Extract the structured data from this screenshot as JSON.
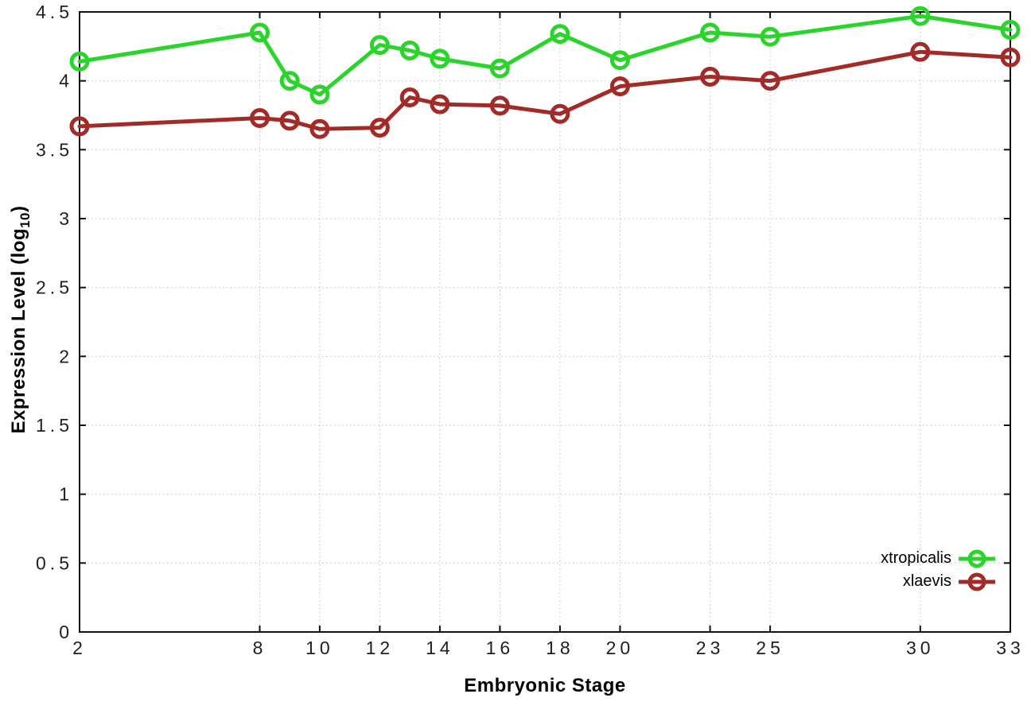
{
  "chart_data": {
    "type": "line",
    "title": "",
    "xlabel": "Embryonic Stage",
    "ylabel": "Expression Level (log10)",
    "ylabel_parts": {
      "pre": "Expression Level (log",
      "sub": "10",
      "post": ")"
    },
    "xlim": [
      2,
      33
    ],
    "ylim": [
      0,
      4.5
    ],
    "grid": true,
    "legend_position": "bottom-right",
    "x": [
      2,
      8,
      9,
      10,
      12,
      13,
      14,
      16,
      18,
      20,
      23,
      25,
      30,
      33
    ],
    "xtick_labels": [
      "2",
      "8",
      "10",
      "12",
      "14",
      "16",
      "18",
      "20",
      "23",
      "25",
      "30",
      "33"
    ],
    "xtick_values": [
      2,
      8,
      10,
      12,
      14,
      16,
      18,
      20,
      23,
      25,
      30,
      33
    ],
    "ytick_labels": [
      "0",
      "0.5",
      "1",
      "1.5",
      "2",
      "2.5",
      "3",
      "3.5",
      "4",
      "4.5"
    ],
    "ytick_values": [
      0,
      0.5,
      1,
      1.5,
      2,
      2.5,
      3,
      3.5,
      4,
      4.5
    ],
    "series": [
      {
        "name": "xtropicalis",
        "color": "#2bd42b",
        "values": [
          4.14,
          4.35,
          4.0,
          3.9,
          4.26,
          4.22,
          4.16,
          4.09,
          4.34,
          4.15,
          4.35,
          4.32,
          4.47,
          4.37
        ]
      },
      {
        "name": "xlaevis",
        "color": "#a32b27",
        "values": [
          3.67,
          3.73,
          3.71,
          3.65,
          3.66,
          3.88,
          3.83,
          3.82,
          3.76,
          3.96,
          4.03,
          4.0,
          4.21,
          4.17
        ]
      }
    ],
    "plot_colors": {
      "border": "#111111",
      "grid": "#bcbcbc",
      "tick": "#111111"
    }
  }
}
